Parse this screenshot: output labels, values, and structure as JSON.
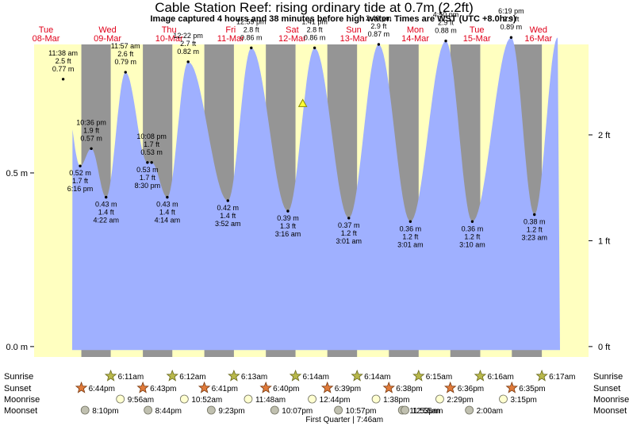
{
  "title": "Cable Station Reef: rising  ordinary tide at 0.7m (2.2ft)",
  "subtitle": "Image captured 4 hours and 38 minutes before high water. Times are WST (UTC +8.0hrs)",
  "colors": {
    "water": "#9fb0ff",
    "day_bg": "#ffffc0",
    "night_bg": "#959595",
    "day_label": "#e0001a"
  },
  "icons": {
    "sunrise": "sunrise-star-icon",
    "sunset": "sunset-star-icon",
    "moonrise": "moonrise-circle-icon",
    "moonset": "moonset-circle-icon",
    "current_level": "current-level-triangle-icon"
  },
  "chart_data": {
    "type": "area",
    "title": "Cable Station Reef: rising  ordinary tide at 0.7m (2.2ft)",
    "y_unit_left": "m",
    "y_unit_right": "ft",
    "ylim": [
      -0.03,
      0.87
    ],
    "left_ticks": [
      {
        "v": 0.0,
        "label": "0.0 m"
      },
      {
        "v": 0.5,
        "label": "0.5 m"
      }
    ],
    "right_ticks": [
      {
        "v": 0.0,
        "label": "0 ft"
      },
      {
        "v": 0.3048,
        "label": "1 ft"
      },
      {
        "v": 0.6096,
        "label": "2 ft"
      }
    ],
    "days": [
      {
        "label": "Tue",
        "date": "08-Mar"
      },
      {
        "label": "Wed",
        "date": "09-Mar"
      },
      {
        "label": "Thu",
        "date": "10-Mar"
      },
      {
        "label": "Fri",
        "date": "11-Mar"
      },
      {
        "label": "Sat",
        "date": "12-Mar"
      },
      {
        "label": "Sun",
        "date": "13-Mar"
      },
      {
        "label": "Mon",
        "date": "14-Mar"
      },
      {
        "label": "Tue",
        "date": "15-Mar"
      },
      {
        "label": "Wed",
        "date": "16-Mar"
      }
    ],
    "extremes": [
      {
        "d": 0,
        "t": "11:38 am",
        "m": 0.77,
        "ft": "2.5 ft",
        "type": "high"
      },
      {
        "d": 0,
        "t": "6:16 pm",
        "m": 0.52,
        "ft": "1.7 ft",
        "type": "low"
      },
      {
        "d": 0,
        "t": "10:36 pm",
        "m": 0.57,
        "ft": "1.9 ft",
        "type": "high"
      },
      {
        "d": 1,
        "t": "4:22 am",
        "m": 0.43,
        "ft": "1.4 ft",
        "type": "low"
      },
      {
        "d": 1,
        "t": "11:57 am",
        "m": 0.79,
        "ft": "2.6 ft",
        "type": "high"
      },
      {
        "d": 1,
        "t": "8:30 pm",
        "m": 0.53,
        "ft": "1.7 ft",
        "type": "low"
      },
      {
        "d": 1,
        "t": "10:08 pm",
        "m": 0.53,
        "ft": "1.7 ft",
        "type": "high"
      },
      {
        "d": 2,
        "t": "4:14 am",
        "m": 0.43,
        "ft": "1.4 ft",
        "type": "low"
      },
      {
        "d": 2,
        "t": "12:22 pm",
        "m": 0.82,
        "ft": "2.7 ft",
        "type": "high"
      },
      {
        "d": 3,
        "t": "3:52 am",
        "m": 0.42,
        "ft": "1.4 ft",
        "type": "low"
      },
      {
        "d": 3,
        "t": "12:59 pm",
        "m": 0.86,
        "ft": "2.8 ft",
        "type": "high"
      },
      {
        "d": 4,
        "t": "3:16 am",
        "m": 0.39,
        "ft": "1.3 ft",
        "type": "low"
      },
      {
        "d": 4,
        "t": "1:41 pm",
        "m": 0.86,
        "ft": "2.8 ft",
        "type": "high"
      },
      {
        "d": 5,
        "t": "3:01 am",
        "m": 0.37,
        "ft": "1.2 ft",
        "type": "low"
      },
      {
        "d": 5,
        "t": "2:40 pm",
        "m": 0.87,
        "ft": "2.9 ft",
        "type": "high"
      },
      {
        "d": 6,
        "t": "3:01 am",
        "m": 0.36,
        "ft": "1.2 ft",
        "type": "low"
      },
      {
        "d": 6,
        "t": "4:50 pm",
        "m": 0.88,
        "ft": "2.9 ft",
        "type": "high"
      },
      {
        "d": 7,
        "t": "3:10 am",
        "m": 0.36,
        "ft": "1.2 ft",
        "type": "low"
      },
      {
        "d": 7,
        "t": "6:19 pm",
        "m": 0.89,
        "ft": "2.9 ft",
        "type": "high"
      },
      {
        "d": 8,
        "t": "3:23 am",
        "m": 0.38,
        "ft": "1.2 ft",
        "type": "low"
      }
    ],
    "current": {
      "d": 4,
      "t": "9:03 am",
      "m": 0.7
    },
    "rows": [
      {
        "name": "Sunrise",
        "icon": "sunrise",
        "items": [
          {
            "d": 1,
            "t": "6:11am"
          },
          {
            "d": 2,
            "t": "6:12am"
          },
          {
            "d": 3,
            "t": "6:13am"
          },
          {
            "d": 4,
            "t": "6:14am"
          },
          {
            "d": 5,
            "t": "6:14am"
          },
          {
            "d": 6,
            "t": "6:15am"
          },
          {
            "d": 7,
            "t": "6:16am"
          },
          {
            "d": 8,
            "t": "6:17am"
          }
        ]
      },
      {
        "name": "Sunset",
        "icon": "sunset",
        "items": [
          {
            "d": 0,
            "t": "6:44pm"
          },
          {
            "d": 1,
            "t": "6:43pm"
          },
          {
            "d": 2,
            "t": "6:41pm"
          },
          {
            "d": 3,
            "t": "6:40pm"
          },
          {
            "d": 4,
            "t": "6:39pm"
          },
          {
            "d": 5,
            "t": "6:38pm"
          },
          {
            "d": 6,
            "t": "6:36pm"
          },
          {
            "d": 7,
            "t": "6:35pm"
          }
        ]
      },
      {
        "name": "Moonrise",
        "icon": "moonrise",
        "items": [
          {
            "d": 1,
            "t": "9:56am"
          },
          {
            "d": 2,
            "t": "10:52am"
          },
          {
            "d": 3,
            "t": "11:48am"
          },
          {
            "d": 4,
            "t": "12:44pm"
          },
          {
            "d": 5,
            "t": "1:38pm"
          },
          {
            "d": 6,
            "t": "2:29pm"
          },
          {
            "d": 7,
            "t": "3:15pm"
          }
        ]
      },
      {
        "name": "Moonset",
        "icon": "moonset",
        "items": [
          {
            "d": 0,
            "t": "8:10pm"
          },
          {
            "d": 1,
            "t": "8:44pm"
          },
          {
            "d": 2,
            "t": "9:23pm"
          },
          {
            "d": 3,
            "t": "10:07pm"
          },
          {
            "d": 4,
            "t": "10:57pm"
          },
          {
            "d": 5,
            "t": "11:53pm"
          },
          {
            "d": 6,
            "t": "12:55am"
          },
          {
            "d": 7,
            "t": "2:00am"
          }
        ]
      }
    ],
    "moon_phase": {
      "d": 4,
      "text": "First Quarter | 7:46am"
    }
  }
}
